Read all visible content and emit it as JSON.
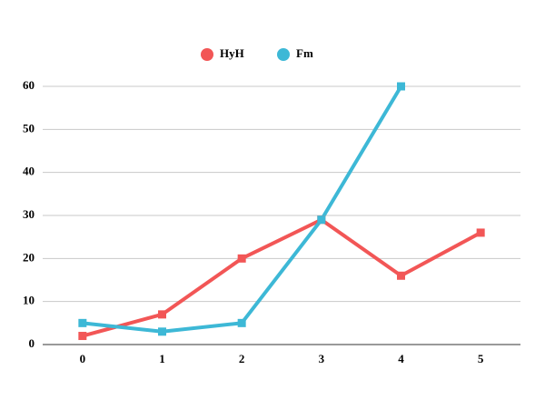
{
  "chart_data": {
    "type": "line",
    "x": [
      0,
      1,
      2,
      3,
      4,
      5
    ],
    "series": [
      {
        "name": "HyH",
        "color": "#f25656",
        "values": [
          2,
          7,
          20,
          29,
          16,
          26
        ]
      },
      {
        "name": "Fm",
        "color": "#3db8d6",
        "values": [
          5,
          3,
          5,
          29,
          60,
          null
        ]
      }
    ],
    "xlim": [
      -0.5,
      5.5
    ],
    "xticks": [
      0,
      1,
      2,
      3,
      4,
      5
    ],
    "ylim": [
      0,
      60
    ],
    "yticks": [
      0,
      10,
      20,
      30,
      40,
      50,
      60
    ],
    "grid": true,
    "legend": "top"
  }
}
